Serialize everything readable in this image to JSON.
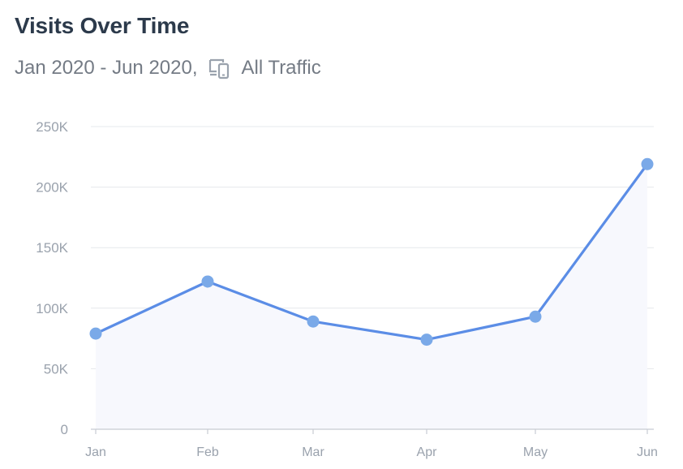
{
  "header": {
    "title": "Visits Over Time",
    "date_range": "Jan 2020 - Jun 2020,",
    "traffic_icon": "devices-icon",
    "traffic_label": "All Traffic"
  },
  "chart_data": {
    "type": "area",
    "title": "Visits Over Time",
    "subtitle": "Jan 2020 - Jun 2020, All Traffic",
    "categories": [
      "Jan",
      "Feb",
      "Mar",
      "Apr",
      "May",
      "Jun"
    ],
    "series": [
      {
        "values": [
          79000,
          122000,
          89000,
          74000,
          93000,
          219000
        ]
      }
    ],
    "ylim": [
      0,
      250000
    ],
    "yticks": [
      0,
      50000,
      100000,
      150000,
      200000,
      250000
    ],
    "ytick_labels": [
      "0",
      "50K",
      "100K",
      "150K",
      "200K",
      "250K"
    ],
    "xlabel": "",
    "ylabel": "",
    "grid": true,
    "legend": "none",
    "colors": {
      "line": "#5b8de6",
      "marker": "#7aa9e8",
      "fill": "#f7f8fd",
      "grid": "#e6e8ec",
      "axis": "#c8ccd3"
    }
  }
}
